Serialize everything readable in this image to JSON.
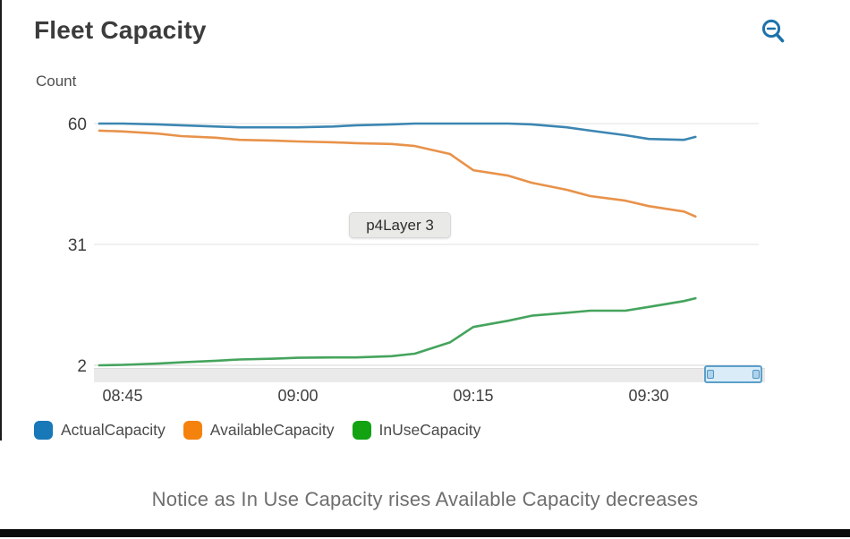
{
  "header": {
    "title": "Fleet Capacity"
  },
  "toolbar": {
    "zoom_out_icon_color": "#1d72aa"
  },
  "tooltip": {
    "label": "p4Layer 3"
  },
  "caption": "Notice as In Use Capacity rises Available Capacity decreases",
  "chart_data": {
    "type": "line",
    "title": "Fleet Capacity",
    "ylabel": "Count",
    "xlabel": "",
    "grid": true,
    "legend_position": "bottom",
    "ylim": [
      2,
      60
    ],
    "y_ticks": [
      60,
      31,
      2
    ],
    "x_ticks": [
      "08:45",
      "09:00",
      "09:15",
      "09:30"
    ],
    "x": [
      "08:43",
      "08:45",
      "08:48",
      "08:50",
      "08:53",
      "08:55",
      "08:58",
      "09:00",
      "09:03",
      "09:05",
      "09:08",
      "09:10",
      "09:13",
      "09:15",
      "09:18",
      "09:20",
      "09:23",
      "09:25",
      "09:28",
      "09:30",
      "09:33",
      "09:34"
    ],
    "series": [
      {
        "name": "ActualCapacity",
        "color": "#1878b8",
        "line_color": "#3c86b2",
        "values": [
          60,
          60,
          59.8,
          59.6,
          59.3,
          59.1,
          59.1,
          59.1,
          59.3,
          59.6,
          59.8,
          60,
          60,
          60,
          60,
          59.8,
          59.1,
          58.3,
          57.2,
          56.3,
          56.1,
          56.8
        ]
      },
      {
        "name": "AvailableCapacity",
        "color": "#f5820d",
        "line_color": "#e8924a",
        "values": [
          58.3,
          58.1,
          57.6,
          57,
          56.6,
          56.1,
          55.9,
          55.7,
          55.5,
          55.3,
          55.1,
          54.6,
          52.7,
          48.8,
          47.5,
          45.8,
          44.1,
          42.6,
          41.5,
          40.2,
          38.9,
          37.7
        ]
      },
      {
        "name": "InUseCapacity",
        "color": "#12a212",
        "line_color": "#45a45d",
        "values": [
          2,
          2.1,
          2.4,
          2.7,
          3.1,
          3.4,
          3.6,
          3.8,
          3.9,
          3.9,
          4.2,
          4.8,
          7.5,
          11.2,
          12.7,
          13.9,
          14.6,
          15.1,
          15.1,
          16,
          17.4,
          18.1
        ]
      }
    ]
  }
}
